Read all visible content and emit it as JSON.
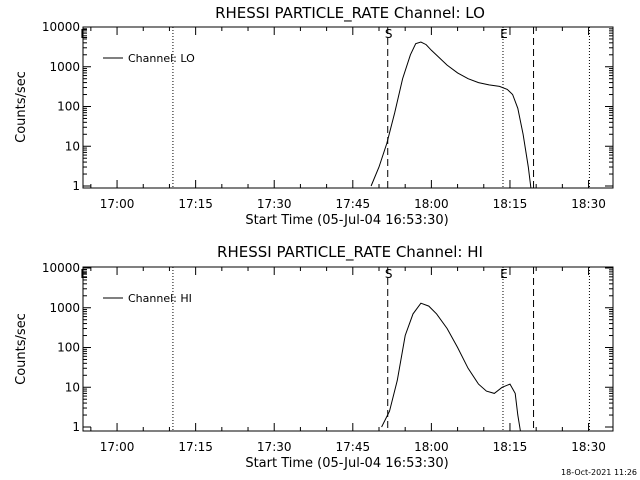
{
  "chart_data": [
    {
      "type": "line",
      "title": "RHESSI PARTICLE_RATE Channel: LO",
      "xlabel": "Start Time (05-Jul-04 16:53:30)",
      "ylabel": "Counts/sec",
      "yscale": "log",
      "ylim": [
        0.8,
        12000
      ],
      "xlim": [
        "16:53:30",
        "18:34:40"
      ],
      "x_ticks": [
        "17:00",
        "17:15",
        "17:30",
        "17:45",
        "18:00",
        "18:15",
        "18:30"
      ],
      "y_ticks": [
        "1",
        "10",
        "100",
        "1000",
        "10000"
      ],
      "legend": {
        "placement": "top-left",
        "entries": [
          "Channel: LO"
        ]
      },
      "markers": [
        {
          "label": "E",
          "x": "16:53:30",
          "style": "dotted"
        },
        {
          "label": "",
          "x": "17:10:40",
          "style": "dotted"
        },
        {
          "label": "S",
          "x": "17:51:40",
          "style": "dashed"
        },
        {
          "label": "E",
          "x": "18:13:40",
          "style": "dotted"
        },
        {
          "label": "",
          "x": "18:19:30",
          "style": "dashed"
        },
        {
          "label": "",
          "x": "18:30:10",
          "style": "dotted"
        }
      ],
      "series": [
        {
          "name": "Channel: LO",
          "x": [
            "17:48:30",
            "17:50:00",
            "17:51:30",
            "17:53:00",
            "17:54:30",
            "17:56:00",
            "17:57:00",
            "17:58:00",
            "17:59:00",
            "18:00:00",
            "18:01:30",
            "18:03:00",
            "18:05:00",
            "18:07:00",
            "18:09:00",
            "18:11:00",
            "18:13:00",
            "18:14:30",
            "18:15:30",
            "18:16:30",
            "18:17:30",
            "18:18:30",
            "18:19:00"
          ],
          "values": [
            1,
            3,
            12,
            70,
            500,
            2000,
            3800,
            4200,
            3600,
            2600,
            1700,
            1100,
            700,
            500,
            400,
            350,
            320,
            270,
            200,
            90,
            20,
            3,
            0.8
          ]
        }
      ]
    },
    {
      "type": "line",
      "title": "RHESSI PARTICLE_RATE Channel: HI",
      "xlabel": "Start Time (05-Jul-04 16:53:30)",
      "ylabel": "Counts/sec",
      "yscale": "log",
      "ylim": [
        0.8,
        12000
      ],
      "xlim": [
        "16:53:30",
        "18:34:40"
      ],
      "x_ticks": [
        "17:00",
        "17:15",
        "17:30",
        "17:45",
        "18:00",
        "18:15",
        "18:30"
      ],
      "y_ticks": [
        "1",
        "10",
        "100",
        "1000",
        "10000"
      ],
      "legend": {
        "placement": "top-left",
        "entries": [
          "Channel: HI"
        ]
      },
      "markers": [
        {
          "label": "E",
          "x": "16:53:30",
          "style": "dotted"
        },
        {
          "label": "",
          "x": "17:10:40",
          "style": "dotted"
        },
        {
          "label": "S",
          "x": "17:51:40",
          "style": "dashed"
        },
        {
          "label": "E",
          "x": "18:13:40",
          "style": "dotted"
        },
        {
          "label": "",
          "x": "18:19:30",
          "style": "dashed"
        },
        {
          "label": "",
          "x": "18:30:10",
          "style": "dotted"
        }
      ],
      "series": [
        {
          "name": "Channel: HI",
          "x": [
            "17:50:30",
            "17:52:00",
            "17:53:30",
            "17:55:00",
            "17:56:30",
            "17:58:00",
            "17:59:30",
            "18:01:00",
            "18:03:00",
            "18:05:00",
            "18:07:00",
            "18:09:00",
            "18:10:30",
            "18:12:00",
            "18:13:30",
            "18:15:00",
            "18:16:00",
            "18:16:30",
            "18:17:00"
          ],
          "values": [
            1,
            2.5,
            15,
            200,
            700,
            1300,
            1100,
            700,
            300,
            100,
            30,
            12,
            8,
            7,
            10,
            12,
            7,
            2,
            0.8
          ]
        }
      ]
    }
  ],
  "timestamp": "18-Oct-2021 11:26"
}
